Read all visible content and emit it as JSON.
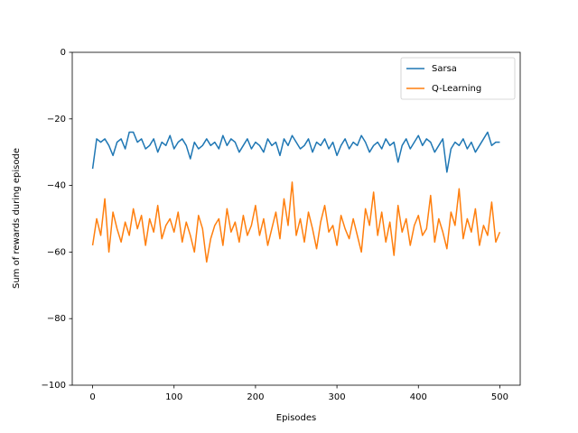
{
  "chart_data": {
    "type": "line",
    "xlabel": "Episodes",
    "ylabel": "Sum of rewards during episode",
    "x": [
      0,
      5,
      10,
      15,
      20,
      25,
      30,
      35,
      40,
      45,
      50,
      55,
      60,
      65,
      70,
      75,
      80,
      85,
      90,
      95,
      100,
      105,
      110,
      115,
      120,
      125,
      130,
      135,
      140,
      145,
      150,
      155,
      160,
      165,
      170,
      175,
      180,
      185,
      190,
      195,
      200,
      205,
      210,
      215,
      220,
      225,
      230,
      235,
      240,
      245,
      250,
      255,
      260,
      265,
      270,
      275,
      280,
      285,
      290,
      295,
      300,
      305,
      310,
      315,
      320,
      325,
      330,
      335,
      340,
      345,
      350,
      355,
      360,
      365,
      370,
      375,
      380,
      385,
      390,
      395,
      400,
      405,
      410,
      415,
      420,
      425,
      430,
      435,
      440,
      445,
      450,
      455,
      460,
      465,
      470,
      475,
      480,
      485,
      490,
      495,
      500
    ],
    "series": [
      {
        "name": "Sarsa",
        "color": "#1f77b4",
        "values": [
          -35,
          -26,
          -27,
          -26,
          -28,
          -31,
          -27,
          -26,
          -29,
          -24,
          -24,
          -27,
          -26,
          -29,
          -28,
          -26,
          -30,
          -27,
          -28,
          -25,
          -29,
          -27,
          -26,
          -28,
          -32,
          -27,
          -29,
          -28,
          -26,
          -28,
          -27,
          -29,
          -25,
          -28,
          -26,
          -27,
          -30,
          -28,
          -26,
          -29,
          -27,
          -28,
          -30,
          -26,
          -28,
          -27,
          -31,
          -26,
          -28,
          -25,
          -27,
          -29,
          -28,
          -26,
          -30,
          -27,
          -28,
          -26,
          -29,
          -27,
          -31,
          -28,
          -26,
          -29,
          -27,
          -28,
          -25,
          -27,
          -30,
          -28,
          -27,
          -29,
          -26,
          -28,
          -27,
          -33,
          -28,
          -26,
          -29,
          -27,
          -25,
          -28,
          -26,
          -27,
          -30,
          -28,
          -26,
          -36,
          -29,
          -27,
          -28,
          -26,
          -29,
          -27,
          -30,
          -28,
          -26,
          -24,
          -28,
          -27,
          -27
        ]
      },
      {
        "name": "Q-Learning",
        "color": "#ff7f0e",
        "values": [
          -58,
          -50,
          -55,
          -44,
          -60,
          -48,
          -53,
          -57,
          -51,
          -55,
          -47,
          -53,
          -49,
          -58,
          -50,
          -54,
          -46,
          -56,
          -52,
          -50,
          -54,
          -48,
          -57,
          -51,
          -55,
          -60,
          -49,
          -53,
          -63,
          -56,
          -52,
          -50,
          -58,
          -47,
          -54,
          -51,
          -57,
          -49,
          -55,
          -52,
          -46,
          -55,
          -50,
          -58,
          -53,
          -48,
          -56,
          -44,
          -52,
          -39,
          -55,
          -50,
          -57,
          -48,
          -53,
          -59,
          -51,
          -46,
          -54,
          -52,
          -58,
          -49,
          -53,
          -56,
          -50,
          -55,
          -60,
          -47,
          -52,
          -42,
          -55,
          -48,
          -57,
          -51,
          -61,
          -46,
          -54,
          -50,
          -58,
          -52,
          -49,
          -55,
          -53,
          -43,
          -57,
          -50,
          -54,
          -59,
          -48,
          -52,
          -41,
          -56,
          -50,
          -54,
          -47,
          -58,
          -52,
          -55,
          -45,
          -57,
          -54
        ]
      }
    ],
    "xlim": [
      -25,
      525
    ],
    "ylim": [
      -100,
      0
    ],
    "xticks": [
      0,
      100,
      200,
      300,
      400,
      500
    ],
    "yticks": [
      {
        "value": -100,
        "label": "−100"
      },
      {
        "value": -80,
        "label": "−80"
      },
      {
        "value": -60,
        "label": "−60"
      },
      {
        "value": -40,
        "label": "−40"
      },
      {
        "value": -20,
        "label": "−20"
      },
      0
    ],
    "legend": "upper right"
  }
}
